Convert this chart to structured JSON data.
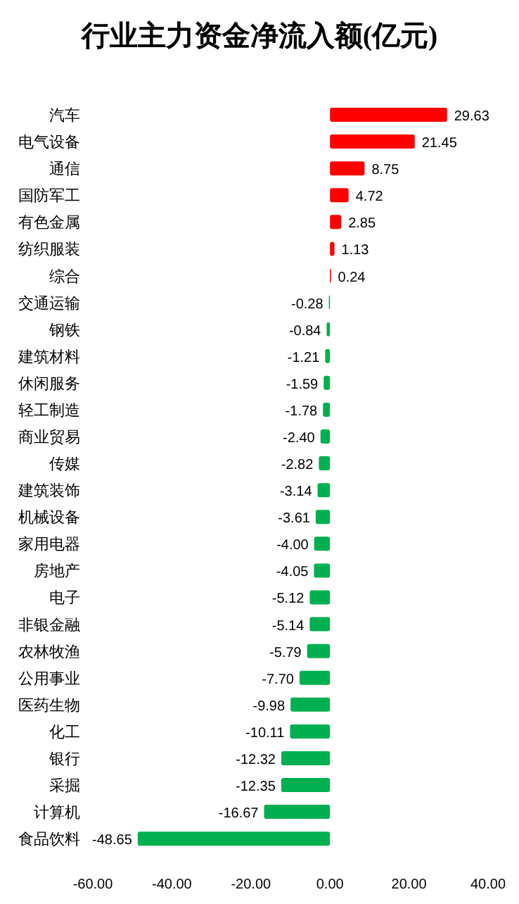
{
  "chart_data": {
    "type": "bar",
    "orientation": "horizontal",
    "title": "行业主力资金净流入额(亿元)",
    "categories": [
      "汽车",
      "电气设备",
      "通信",
      "国防军工",
      "有色金属",
      "纺织服装",
      "综合",
      "交通运输",
      "钢铁",
      "建筑材料",
      "休闲服务",
      "轻工制造",
      "商业贸易",
      "传媒",
      "建筑装饰",
      "机械设备",
      "家用电器",
      "房地产",
      "电子",
      "非银金融",
      "农林牧渔",
      "公用事业",
      "医药生物",
      "化工",
      "银行",
      "采掘",
      "计算机",
      "食品饮料"
    ],
    "values": [
      29.63,
      21.45,
      8.75,
      4.72,
      2.85,
      1.13,
      0.24,
      -0.28,
      -0.84,
      -1.21,
      -1.59,
      -1.78,
      -2.4,
      -2.82,
      -3.14,
      -3.61,
      -4.0,
      -4.05,
      -5.12,
      -5.14,
      -5.79,
      -7.7,
      -9.98,
      -10.11,
      -12.32,
      -12.35,
      -16.67,
      -48.65
    ],
    "colors": [
      "#ff0000",
      "#ff0000",
      "#ff0000",
      "#ff0000",
      "#ff0000",
      "#ff0000",
      "#ff0000",
      "#00b050",
      "#00b050",
      "#00b050",
      "#00b050",
      "#00b050",
      "#00b050",
      "#00b050",
      "#00b050",
      "#00b050",
      "#00b050",
      "#00b050",
      "#00b050",
      "#00b050",
      "#00b050",
      "#00b050",
      "#00b050",
      "#00b050",
      "#00b050",
      "#00b050",
      "#00b050",
      "#00b050"
    ],
    "value_labels": [
      "29.63",
      "21.45",
      "8.75",
      "4.72",
      "2.85",
      "1.13",
      "0.24",
      "-0.28",
      "-0.84",
      "-1.21",
      "-1.59",
      "-1.78",
      "-2.40",
      "-2.82",
      "-3.14",
      "-3.61",
      "-4.00",
      "-4.05",
      "-5.12",
      "-5.14",
      "-5.79",
      "-7.70",
      "-9.98",
      "-10.11",
      "-12.32",
      "-12.35",
      "-16.67",
      "-48.65"
    ],
    "xlim": [
      -60,
      40
    ],
    "xticks": [
      {
        "value": -60,
        "label": "-60.00"
      },
      {
        "value": -40,
        "label": "-40.00"
      },
      {
        "value": -20,
        "label": "-20.00"
      },
      {
        "value": 0,
        "label": "0.00"
      },
      {
        "value": 20,
        "label": "20.00"
      },
      {
        "value": 40,
        "label": "40.00"
      }
    ]
  }
}
